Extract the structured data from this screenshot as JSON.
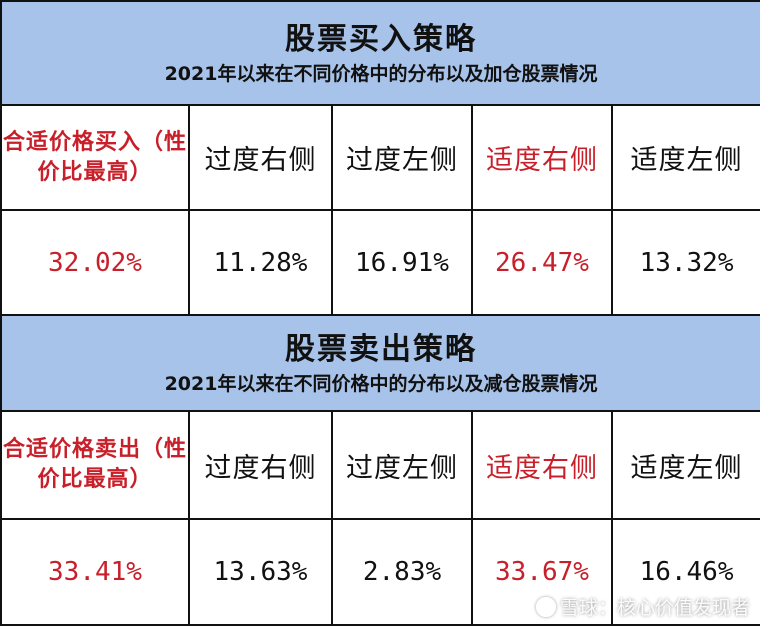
{
  "buy": {
    "title": "股票买入策略",
    "subtitle": "2021年以来在不同价格中的分布以及加仓股票情况",
    "headers": [
      "合适价格买入（性价比最高）",
      "过度右侧",
      "过度左侧",
      "适度右侧",
      "适度左侧"
    ],
    "values": [
      "32.02%",
      "11.28%",
      "16.91%",
      "26.47%",
      "13.32%"
    ]
  },
  "sell": {
    "title": "股票卖出策略",
    "subtitle": "2021年以来在不同价格中的分布以及减仓股票情况",
    "headers": [
      "合适价格卖出（性价比最高）",
      "过度右侧",
      "过度左侧",
      "适度右侧",
      "适度左侧"
    ],
    "values": [
      "33.41%",
      "13.63%",
      "2.83%",
      "33.67%",
      "16.46%"
    ]
  },
  "colors": {
    "header_bg": "#a8c3ea",
    "highlight": "#c8202a"
  },
  "watermark": "雪球：核心价值发现者"
}
